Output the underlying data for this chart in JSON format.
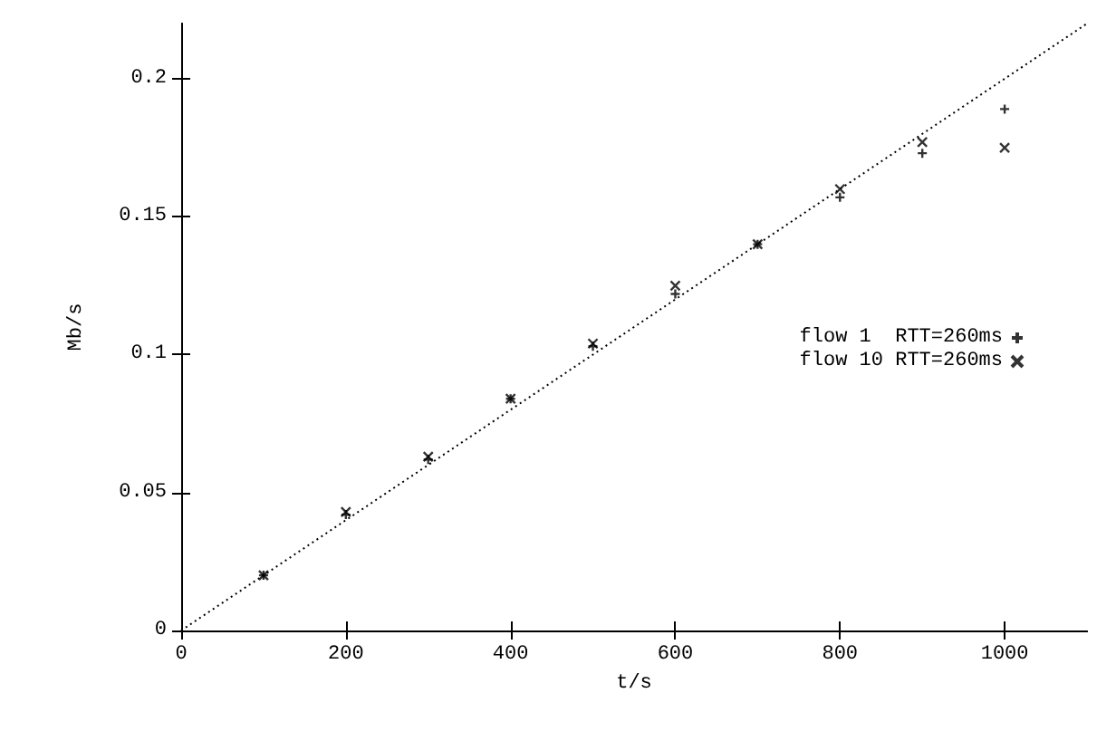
{
  "chart_data": {
    "type": "scatter",
    "xlabel": "t/s",
    "ylabel": "Mb/s",
    "xlim": [
      0,
      1100
    ],
    "ylim": [
      0,
      0.22
    ],
    "xticks": [
      0,
      200,
      400,
      600,
      800,
      1000
    ],
    "yticks": [
      0,
      0.05,
      0.1,
      0.15,
      0.2
    ],
    "grid": false,
    "legend": "right",
    "marker": "cross",
    "series": [
      {
        "name": "flow 1  RTT=260ms",
        "color": "#000000",
        "x": [
          100,
          200,
          300,
          400,
          500,
          600,
          700,
          800,
          900,
          1000
        ],
        "values": [
          0.02,
          0.042,
          0.062,
          0.084,
          0.103,
          0.122,
          0.14,
          0.157,
          0.173,
          0.189
        ]
      },
      {
        "name": "flow 10 RTT=260ms",
        "color": "#000000",
        "x": [
          100,
          200,
          300,
          400,
          500,
          600,
          700,
          800,
          900,
          1000
        ],
        "values": [
          0.02,
          0.043,
          0.063,
          0.084,
          0.104,
          0.125,
          0.14,
          0.16,
          0.177,
          0.175
        ]
      },
      {
        "type": "line",
        "color": "#000000",
        "line_style": "dotted",
        "marker": "none",
        "x": [
          0,
          1100
        ],
        "values": [
          0,
          0.22
        ]
      }
    ]
  }
}
